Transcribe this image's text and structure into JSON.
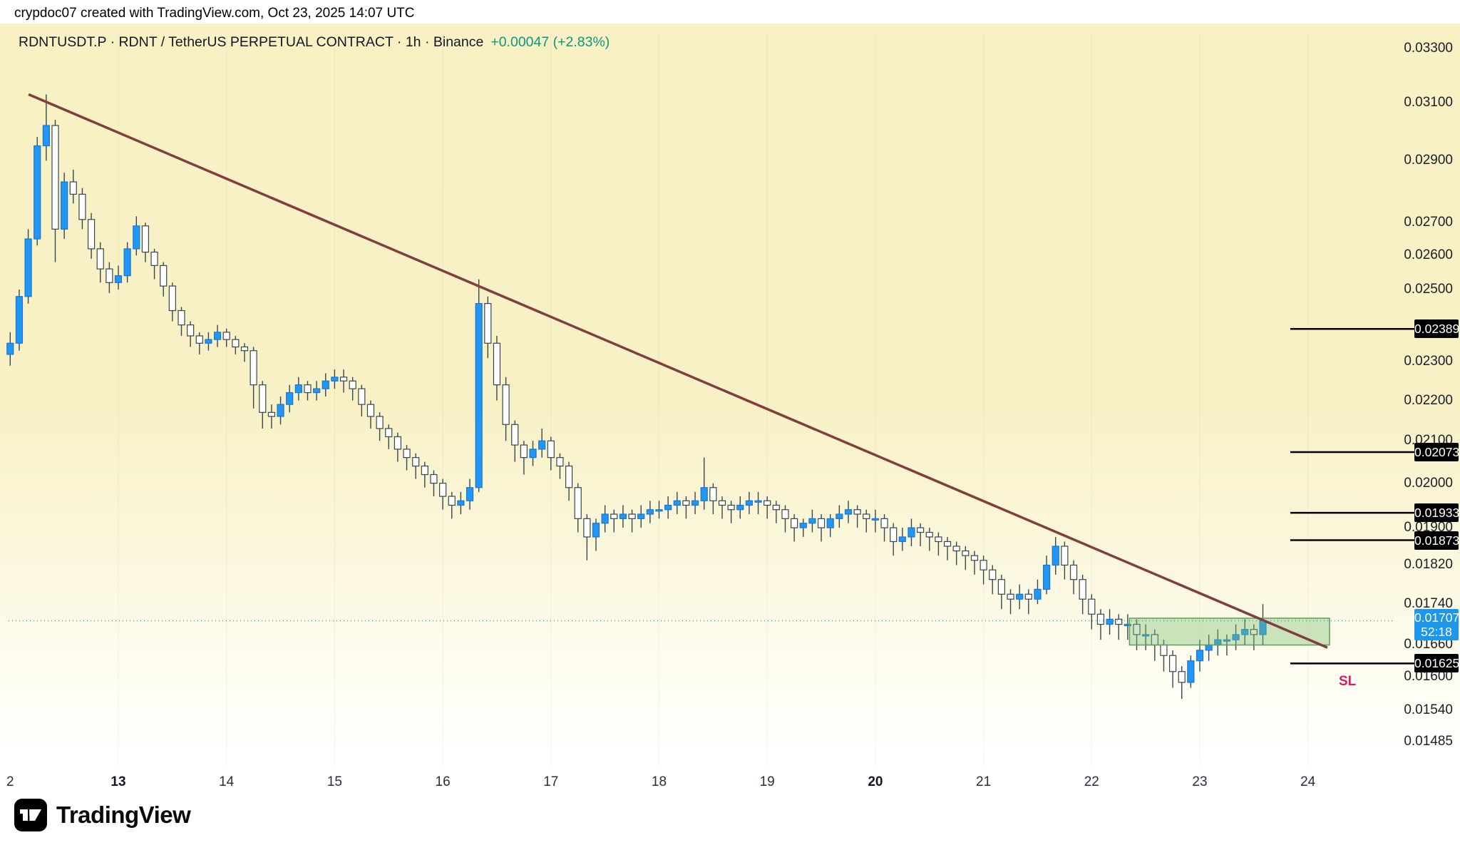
{
  "attribution": "crypdoc07 created with TradingView.com, Oct 23, 2025 14:07 UTC",
  "header": {
    "symbol_line": "RDNTUSDT.P · RDNT / TetherUS PERPETUAL CONTRACT · 1h · Binance",
    "change": "+0.00047 (+2.83%)"
  },
  "logo": {
    "brand": "TradingView"
  },
  "colors": {
    "background_top": "#f8f1c6",
    "candle_up": "#2196f3",
    "candle_up_border": "#1976d2",
    "candle_down": "#ffffff",
    "wick": "#37474f",
    "trendline": "#803e3e",
    "zone_fill": "rgba(120,190,110,0.38)",
    "zone_border": "#57a05a",
    "level_line": "#000000",
    "level_label_bg": "#000000",
    "level_label_text": "#ffffff",
    "current_label_bg": "#1e96ea",
    "current_line": "#2aa79b",
    "sl": "#d81b60",
    "positive_change": "#089981",
    "text": "#131722"
  },
  "chart_data": {
    "type": "candlestick",
    "symbol": "RDNTUSDT.P",
    "exchange": "Binance",
    "interval": "1h",
    "scale": "log",
    "ylim": [
      0.0145,
      0.0338
    ],
    "xlim_days": [
      11.95,
      24.45
    ],
    "current_price": 0.01707,
    "sl_label": "SL",
    "price_axis": {
      "plain_ticks": [
        "0.03300",
        "0.03100",
        "0.02900",
        "0.02700",
        "0.02600",
        "0.02500",
        "0.02300",
        "0.02200",
        "0.02100",
        "0.02000",
        "0.01900",
        "0.01820",
        "0.01740",
        "0.01660",
        "0.01600",
        "0.01540",
        "0.01485"
      ],
      "level_labels": [
        "0.02389",
        "0.02073",
        "0.01933",
        "0.01873",
        "0.01625"
      ],
      "current": {
        "price": "0.01707",
        "countdown": "52:18"
      }
    },
    "time_axis": {
      "labels": [
        {
          "t": "2",
          "d": 12
        },
        {
          "t": "13",
          "d": 13,
          "b": 1
        },
        {
          "t": "14",
          "d": 14
        },
        {
          "t": "15",
          "d": 15
        },
        {
          "t": "16",
          "d": 16
        },
        {
          "t": "17",
          "d": 17
        },
        {
          "t": "18",
          "d": 18
        },
        {
          "t": "19",
          "d": 19
        },
        {
          "t": "20",
          "d": 20,
          "b": 1
        },
        {
          "t": "21",
          "d": 21
        },
        {
          "t": "22",
          "d": 22
        },
        {
          "t": "23",
          "d": 23
        },
        {
          "t": "24",
          "d": 24
        }
      ]
    },
    "levels": [
      0.02389,
      0.02073,
      0.01933,
      0.01873,
      0.01625
    ],
    "trendline": {
      "from": {
        "day": 12.17,
        "price": 0.0313
      },
      "to": {
        "day": 24.18,
        "price": 0.01655
      }
    },
    "zone": {
      "day_from": 22.35,
      "day_to": 24.2,
      "price_top": 0.01712,
      "price_bottom": 0.0166
    },
    "start_day": 12.0,
    "step_days": 0.0833333,
    "first_open": 0.0232,
    "candles_format": [
      "high",
      "low",
      "close (open = previous close)"
    ],
    "candles": [
      [
        0.0238,
        0.0229,
        0.0235
      ],
      [
        0.025,
        0.0233,
        0.0248
      ],
      [
        0.0268,
        0.0246,
        0.0265
      ],
      [
        0.0298,
        0.0263,
        0.0295
      ],
      [
        0.0313,
        0.029,
        0.0302
      ],
      [
        0.0304,
        0.0258,
        0.0268
      ],
      [
        0.0286,
        0.0265,
        0.0283
      ],
      [
        0.0287,
        0.0276,
        0.0279
      ],
      [
        0.0281,
        0.0268,
        0.0271
      ],
      [
        0.0273,
        0.0259,
        0.0262
      ],
      [
        0.0264,
        0.0252,
        0.0256
      ],
      [
        0.0258,
        0.0249,
        0.0252
      ],
      [
        0.0257,
        0.025,
        0.0254
      ],
      [
        0.0264,
        0.0252,
        0.0262
      ],
      [
        0.0272,
        0.026,
        0.0269
      ],
      [
        0.027,
        0.0258,
        0.0261
      ],
      [
        0.0262,
        0.0253,
        0.0257
      ],
      [
        0.0258,
        0.0248,
        0.0251
      ],
      [
        0.0252,
        0.0241,
        0.0244
      ],
      [
        0.0245,
        0.0237,
        0.024
      ],
      [
        0.0241,
        0.0234,
        0.0237
      ],
      [
        0.0238,
        0.0232,
        0.0235
      ],
      [
        0.0238,
        0.0233,
        0.0236
      ],
      [
        0.024,
        0.0234,
        0.0238
      ],
      [
        0.0239,
        0.0234,
        0.0236
      ],
      [
        0.0237,
        0.0232,
        0.0234
      ],
      [
        0.0235,
        0.023,
        0.0233
      ],
      [
        0.0234,
        0.0218,
        0.0224
      ],
      [
        0.0225,
        0.0213,
        0.0217
      ],
      [
        0.0219,
        0.0213,
        0.0216
      ],
      [
        0.0221,
        0.0214,
        0.0219
      ],
      [
        0.0224,
        0.0217,
        0.0222
      ],
      [
        0.0226,
        0.022,
        0.0224
      ],
      [
        0.0225,
        0.022,
        0.0222
      ],
      [
        0.0225,
        0.022,
        0.0223
      ],
      [
        0.0227,
        0.0221,
        0.0225
      ],
      [
        0.0228,
        0.0223,
        0.0226
      ],
      [
        0.0228,
        0.0222,
        0.0225
      ],
      [
        0.0226,
        0.022,
        0.0223
      ],
      [
        0.0224,
        0.0216,
        0.0219
      ],
      [
        0.022,
        0.0213,
        0.0216
      ],
      [
        0.0217,
        0.021,
        0.0213
      ],
      [
        0.0214,
        0.0208,
        0.0211
      ],
      [
        0.0212,
        0.0205,
        0.0208
      ],
      [
        0.0209,
        0.0203,
        0.0206
      ],
      [
        0.0207,
        0.0201,
        0.0204
      ],
      [
        0.0205,
        0.0199,
        0.0202
      ],
      [
        0.0203,
        0.0197,
        0.02
      ],
      [
        0.0201,
        0.0194,
        0.0197
      ],
      [
        0.0198,
        0.0192,
        0.0195
      ],
      [
        0.0198,
        0.0193,
        0.0196
      ],
      [
        0.0201,
        0.0194,
        0.0199
      ],
      [
        0.0253,
        0.0198,
        0.0246
      ],
      [
        0.0248,
        0.0231,
        0.0235
      ],
      [
        0.0237,
        0.022,
        0.0224
      ],
      [
        0.0226,
        0.021,
        0.0214
      ],
      [
        0.0215,
        0.0205,
        0.0209
      ],
      [
        0.021,
        0.0202,
        0.0206
      ],
      [
        0.021,
        0.0204,
        0.0208
      ],
      [
        0.0213,
        0.0206,
        0.021
      ],
      [
        0.0211,
        0.0203,
        0.0206
      ],
      [
        0.0207,
        0.0201,
        0.0204
      ],
      [
        0.0205,
        0.0196,
        0.0199
      ],
      [
        0.02,
        0.0189,
        0.0192
      ],
      [
        0.0193,
        0.0183,
        0.0188
      ],
      [
        0.0192,
        0.0185,
        0.0191
      ],
      [
        0.0195,
        0.0189,
        0.0193
      ],
      [
        0.0194,
        0.0189,
        0.0192
      ],
      [
        0.0195,
        0.019,
        0.0193
      ],
      [
        0.0194,
        0.0189,
        0.0192
      ],
      [
        0.0195,
        0.019,
        0.0193
      ],
      [
        0.0196,
        0.0191,
        0.0194
      ],
      [
        0.0196,
        0.0192,
        0.0194
      ],
      [
        0.0197,
        0.0192,
        0.0195
      ],
      [
        0.0198,
        0.0193,
        0.0196
      ],
      [
        0.0197,
        0.0192,
        0.0195
      ],
      [
        0.0198,
        0.0193,
        0.0196
      ],
      [
        0.0206,
        0.0194,
        0.0199
      ],
      [
        0.02,
        0.0193,
        0.0196
      ],
      [
        0.0197,
        0.0192,
        0.0195
      ],
      [
        0.0196,
        0.0191,
        0.0194
      ],
      [
        0.0197,
        0.0192,
        0.0195
      ],
      [
        0.0198,
        0.0193,
        0.0196
      ],
      [
        0.0198,
        0.0193,
        0.0196
      ],
      [
        0.0197,
        0.0192,
        0.0195
      ],
      [
        0.0196,
        0.0191,
        0.0194
      ],
      [
        0.0195,
        0.0189,
        0.0192
      ],
      [
        0.0193,
        0.0187,
        0.019
      ],
      [
        0.0192,
        0.0188,
        0.0191
      ],
      [
        0.0194,
        0.0189,
        0.0192
      ],
      [
        0.0193,
        0.0187,
        0.019
      ],
      [
        0.0193,
        0.0188,
        0.0192
      ],
      [
        0.0195,
        0.019,
        0.0193
      ],
      [
        0.0196,
        0.0191,
        0.0194
      ],
      [
        0.0195,
        0.019,
        0.0193
      ],
      [
        0.0194,
        0.0189,
        0.0192
      ],
      [
        0.0194,
        0.0189,
        0.0192
      ],
      [
        0.0193,
        0.0187,
        0.019
      ],
      [
        0.0191,
        0.0184,
        0.0187
      ],
      [
        0.019,
        0.0185,
        0.0188
      ],
      [
        0.0192,
        0.0186,
        0.019
      ],
      [
        0.0191,
        0.0186,
        0.0189
      ],
      [
        0.019,
        0.0185,
        0.0188
      ],
      [
        0.0189,
        0.0184,
        0.0187
      ],
      [
        0.0188,
        0.0183,
        0.0186
      ],
      [
        0.0187,
        0.0182,
        0.0185
      ],
      [
        0.0186,
        0.0181,
        0.0184
      ],
      [
        0.0185,
        0.018,
        0.0183
      ],
      [
        0.0184,
        0.0178,
        0.0181
      ],
      [
        0.0182,
        0.0176,
        0.0179
      ],
      [
        0.018,
        0.0173,
        0.0176
      ],
      [
        0.0177,
        0.0172,
        0.0175
      ],
      [
        0.0178,
        0.0173,
        0.0176
      ],
      [
        0.0177,
        0.0172,
        0.0175
      ],
      [
        0.0179,
        0.0174,
        0.0177
      ],
      [
        0.0184,
        0.0176,
        0.0182
      ],
      [
        0.0188,
        0.018,
        0.0186
      ],
      [
        0.0187,
        0.0179,
        0.0182
      ],
      [
        0.0183,
        0.0176,
        0.0179
      ],
      [
        0.018,
        0.0172,
        0.0175
      ],
      [
        0.0176,
        0.0169,
        0.0172
      ],
      [
        0.0173,
        0.0167,
        0.017
      ],
      [
        0.0173,
        0.0168,
        0.0171
      ],
      [
        0.0172,
        0.0167,
        0.017
      ],
      [
        0.0172,
        0.0167,
        0.017
      ],
      [
        0.0171,
        0.0165,
        0.0168
      ],
      [
        0.017,
        0.0165,
        0.0168
      ],
      [
        0.0169,
        0.0163,
        0.0166
      ],
      [
        0.0167,
        0.0161,
        0.0164
      ],
      [
        0.0165,
        0.0158,
        0.0161
      ],
      [
        0.0162,
        0.0156,
        0.0159
      ],
      [
        0.0164,
        0.0158,
        0.0163
      ],
      [
        0.0167,
        0.0161,
        0.0165
      ],
      [
        0.0168,
        0.0163,
        0.0166
      ],
      [
        0.0169,
        0.0164,
        0.0167
      ],
      [
        0.0168,
        0.0164,
        0.0167
      ],
      [
        0.017,
        0.0165,
        0.0168
      ],
      [
        0.0171,
        0.0166,
        0.0169
      ],
      [
        0.017,
        0.0165,
        0.0168
      ],
      [
        0.0174,
        0.0166,
        0.01707
      ]
    ]
  }
}
